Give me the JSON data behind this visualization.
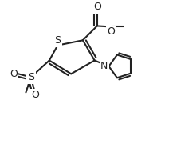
{
  "bg_color": "#ffffff",
  "line_color": "#222222",
  "line_width": 1.5,
  "fig_width": 2.12,
  "fig_height": 1.96,
  "dpi": 100,
  "xlim": [
    0,
    10
  ],
  "ylim": [
    0,
    9.2
  ]
}
